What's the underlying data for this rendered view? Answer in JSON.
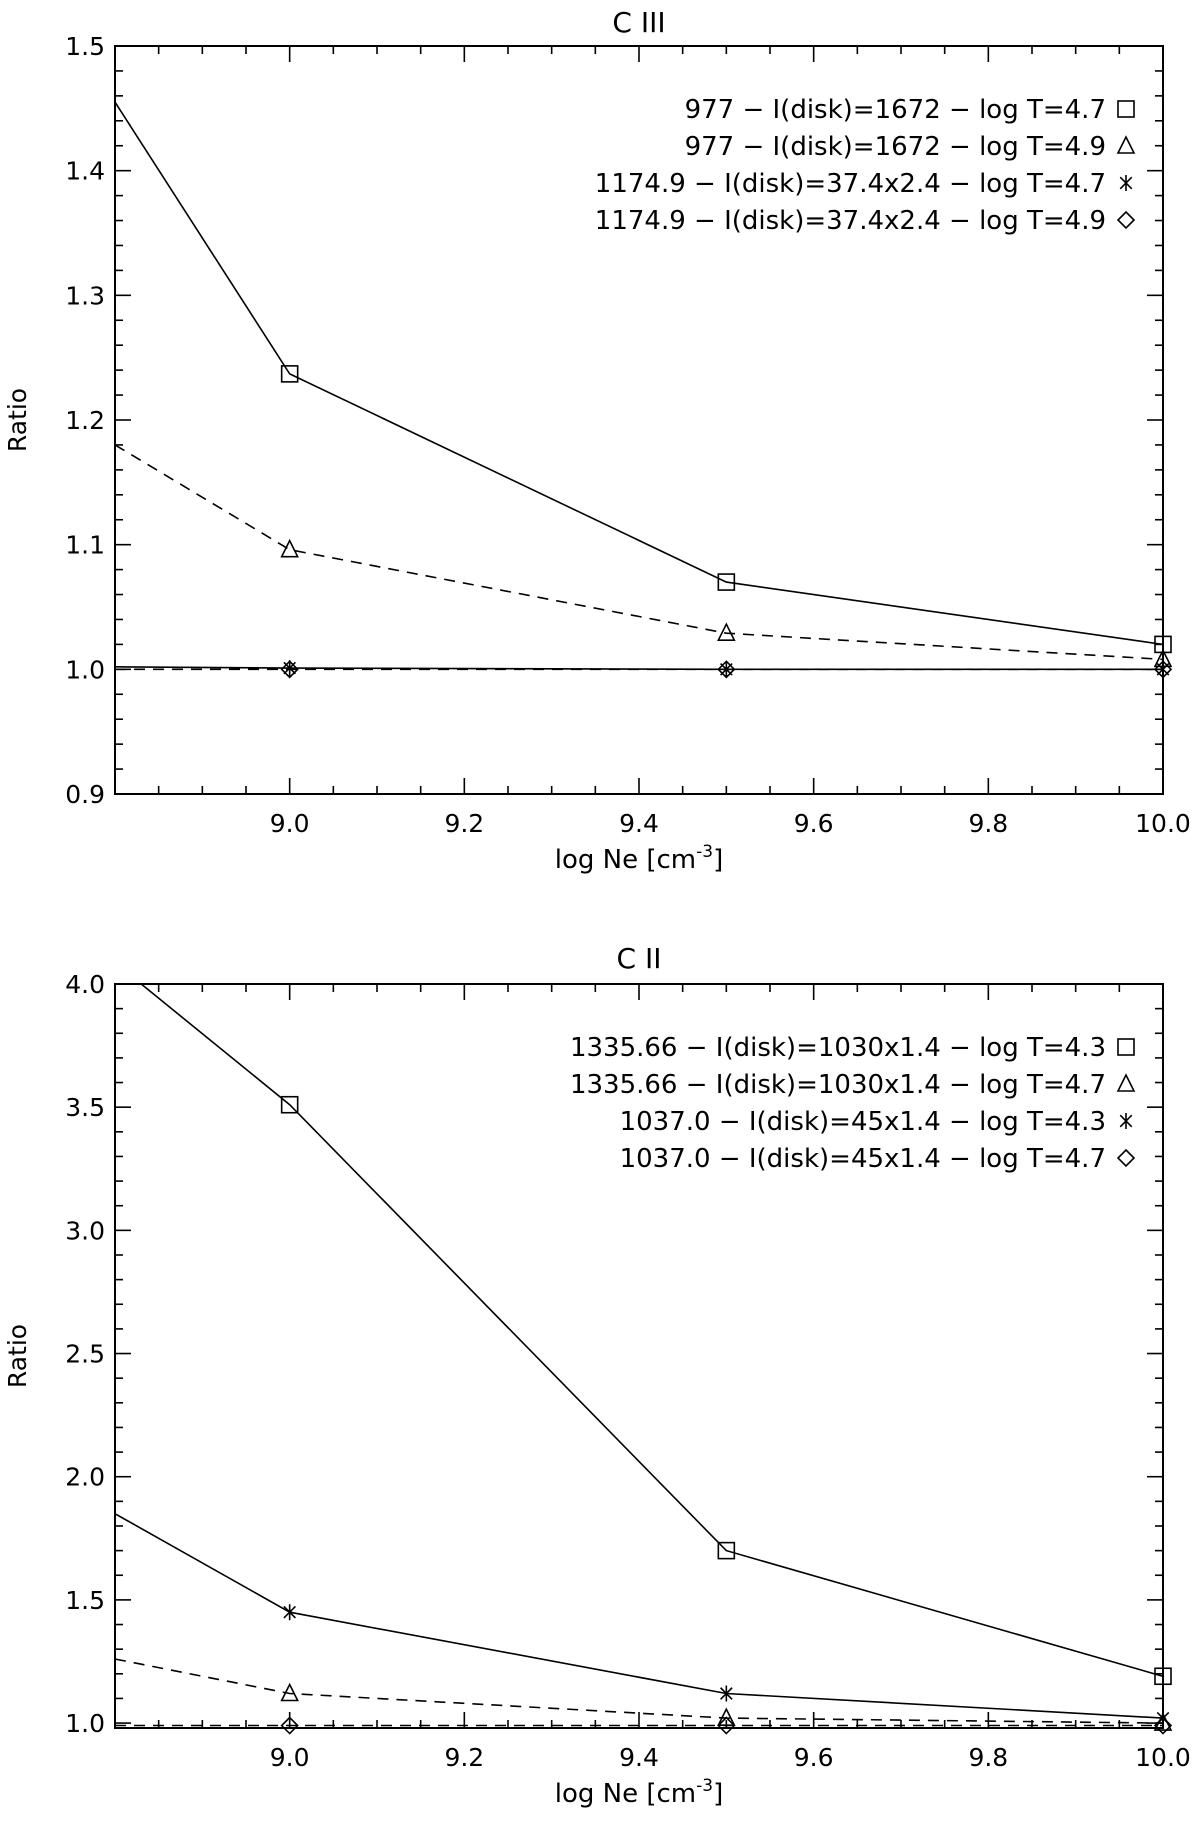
{
  "chart_data": [
    {
      "type": "line",
      "title": "C III",
      "xlabel": "log Ne [cm",
      "xlabel_exponent": "-3",
      "xlabel_close": "]",
      "ylabel": "Ratio",
      "xlim": [
        8.8,
        10.0
      ],
      "ylim": [
        0.9,
        1.5
      ],
      "xticks": [
        9.0,
        9.2,
        9.4,
        9.6,
        9.8,
        10.0
      ],
      "xtick_labels": [
        "9.0",
        "9.2",
        "9.4",
        "9.6",
        "9.8",
        "10.0"
      ],
      "yticks": [
        0.9,
        1.0,
        1.1,
        1.2,
        1.3,
        1.4,
        1.5
      ],
      "ytick_labels": [
        "0.9",
        "1.0",
        "1.1",
        "1.2",
        "1.3",
        "1.4",
        "1.5"
      ],
      "legend_position": "top-right",
      "series": [
        {
          "name": "977 − I(disk)=1672 − log T=4.7",
          "marker": "square",
          "dash": "solid",
          "x": [
            8.8,
            9.0,
            9.5,
            10.0
          ],
          "y": [
            1.455,
            1.237,
            1.07,
            1.02
          ]
        },
        {
          "name": "977 − I(disk)=1672 − log T=4.9",
          "marker": "triangle",
          "dash": "dashed",
          "x": [
            8.8,
            9.0,
            9.5,
            10.0
          ],
          "y": [
            1.18,
            1.096,
            1.029,
            1.008
          ]
        },
        {
          "name": "1174.9 − I(disk)=37.4x2.4 − log T=4.7",
          "marker": "asterisk",
          "dash": "solid",
          "x": [
            8.8,
            9.0,
            9.5,
            10.0
          ],
          "y": [
            1.002,
            1.001,
            1.0,
            1.0
          ]
        },
        {
          "name": "1174.9 − I(disk)=37.4x2.4 − log T=4.9",
          "marker": "diamond",
          "dash": "dashed",
          "x": [
            8.8,
            9.0,
            9.5,
            10.0
          ],
          "y": [
            1.0,
            1.0,
            1.0,
            1.0
          ]
        }
      ]
    },
    {
      "type": "line",
      "title": "C II",
      "xlabel": "log Ne [cm",
      "xlabel_exponent": "-3",
      "xlabel_close": "]",
      "ylabel": "Ratio",
      "xlim": [
        8.8,
        10.0
      ],
      "ylim": [
        0.98,
        4.0
      ],
      "xticks": [
        9.0,
        9.2,
        9.4,
        9.6,
        9.8,
        10.0
      ],
      "xtick_labels": [
        "9.0",
        "9.2",
        "9.4",
        "9.6",
        "9.8",
        "10.0"
      ],
      "yticks": [
        1.0,
        1.5,
        2.0,
        2.5,
        3.0,
        3.5,
        4.0
      ],
      "ytick_labels": [
        "1.0",
        "1.5",
        "2.0",
        "2.5",
        "3.0",
        "3.5",
        "4.0"
      ],
      "legend_position": "top-right",
      "series": [
        {
          "name": "1335.66 − I(disk)=1030x1.4 − log T=4.3",
          "marker": "square",
          "dash": "solid",
          "x": [
            8.83,
            9.0,
            9.5,
            10.0
          ],
          "y": [
            4.0,
            3.51,
            1.7,
            1.19
          ]
        },
        {
          "name": "1335.66 − I(disk)=1030x1.4 − log T=4.7",
          "marker": "triangle",
          "dash": "dashed",
          "x": [
            8.8,
            9.0,
            9.5,
            10.0
          ],
          "y": [
            1.26,
            1.12,
            1.02,
            1.0
          ]
        },
        {
          "name": "1037.0 − I(disk)=45x1.4 − log T=4.3",
          "marker": "asterisk",
          "dash": "solid",
          "x": [
            8.8,
            9.0,
            9.5,
            10.0
          ],
          "y": [
            1.85,
            1.45,
            1.12,
            1.02
          ]
        },
        {
          "name": "1037.0 − I(disk)=45x1.4 − log T=4.7",
          "marker": "diamond",
          "dash": "dashed",
          "x": [
            8.8,
            9.0,
            9.5,
            10.0
          ],
          "y": [
            0.99,
            0.99,
            0.99,
            0.99
          ]
        }
      ]
    }
  ]
}
